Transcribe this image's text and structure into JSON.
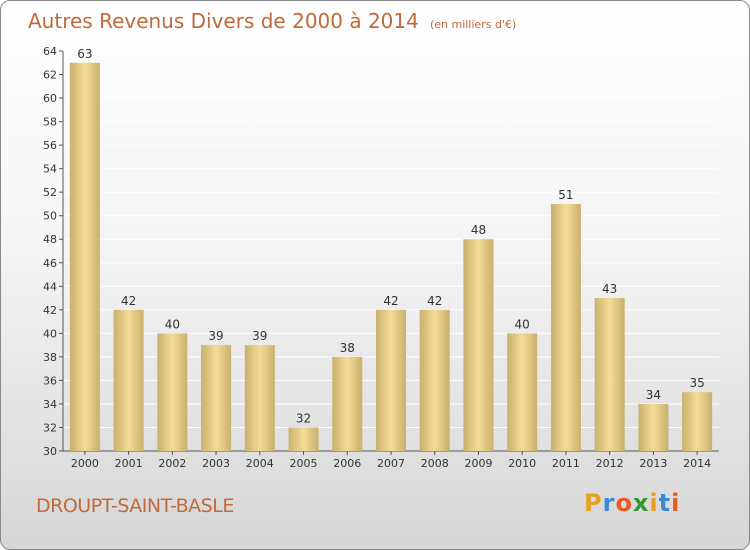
{
  "header": {
    "title": "Autres Revenus Divers de 2000 à 2014",
    "subtitle": "(en milliers d'€)"
  },
  "footer": {
    "place": "DROUPT-SAINT-BASLE",
    "logo_letters": [
      "P",
      "r",
      "o",
      "x",
      "i",
      "t",
      "i"
    ],
    "logo_colors": [
      "#e8a020",
      "#3a8ad8",
      "#e85a20",
      "#2e9a2e",
      "#e8a020",
      "#3a8ad8",
      "#e85a20"
    ]
  },
  "colors": {
    "bar_light": "#f4dc96",
    "bar_dark": "#c9b06e",
    "accent": "#c0693a",
    "grid": "#ffffff"
  },
  "chart_data": {
    "type": "bar",
    "categories": [
      "2000",
      "2001",
      "2002",
      "2003",
      "2004",
      "2005",
      "2006",
      "2007",
      "2008",
      "2009",
      "2010",
      "2011",
      "2012",
      "2013",
      "2014"
    ],
    "values": [
      63,
      42,
      40,
      39,
      39,
      32,
      38,
      42,
      42,
      48,
      40,
      51,
      43,
      34,
      35
    ],
    "title": "Autres Revenus Divers de 2000 à 2014",
    "subtitle": "(en milliers d'€)",
    "ylim": [
      30,
      64
    ],
    "yticks": [
      30,
      32,
      34,
      36,
      38,
      40,
      42,
      44,
      46,
      48,
      50,
      52,
      54,
      56,
      58,
      60,
      62,
      64
    ],
    "grid": true,
    "data_labels": true
  }
}
